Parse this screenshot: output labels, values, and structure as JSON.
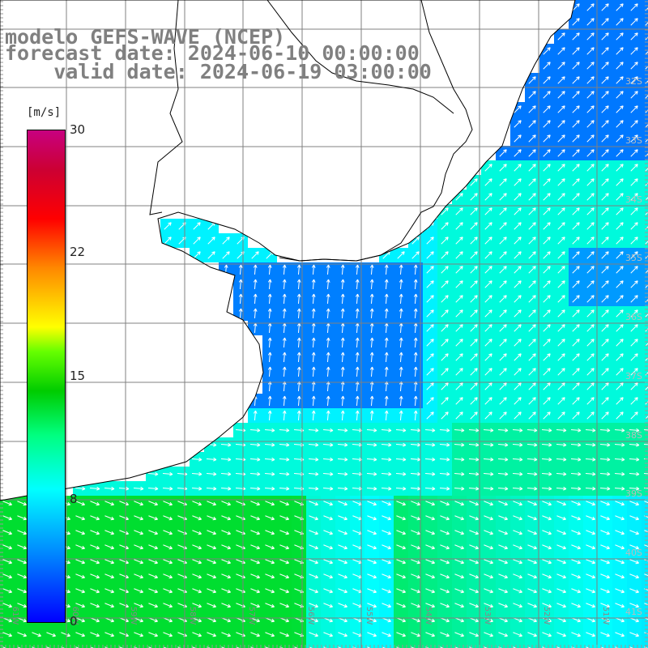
{
  "title": {
    "line1": "modelo GEFS-WAVE (NCEP)",
    "line2": "forecast date: 2024-06-10 00:00:00",
    "line3": "    valid date: 2024-06-19 03:00:00"
  },
  "colorbar": {
    "unit": "[m/s]",
    "ticks": [
      "30",
      "22",
      "15",
      "8",
      "0"
    ],
    "stops": [
      {
        "value": 0,
        "color": "#0000ff"
      },
      {
        "value": 8,
        "color": "#00ffff"
      },
      {
        "value": 15,
        "color": "#ffff00"
      },
      {
        "value": 22,
        "color": "#ff8800"
      },
      {
        "value": 30,
        "color": "#c80080"
      }
    ]
  },
  "map": {
    "lat_labels": [
      "32S",
      "33S",
      "34S",
      "35S",
      "36S",
      "37S",
      "38S",
      "39S",
      "40S",
      "41S"
    ],
    "lon_labels": [
      "61W",
      "60W",
      "59W",
      "58W",
      "57W",
      "56W",
      "55W",
      "54W",
      "53W",
      "52W",
      "51W"
    ],
    "land_color": "#ffffff",
    "coast_color": "#000000",
    "grid_color": "#808080",
    "vector_color": "#ffffff"
  }
}
